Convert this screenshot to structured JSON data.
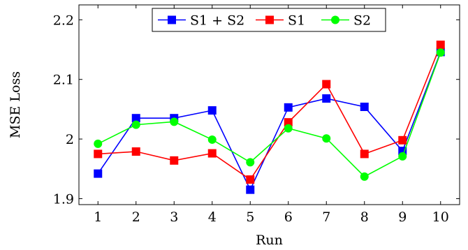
{
  "chart_data": {
    "type": "line",
    "xlabel": "Run",
    "ylabel": "MSE Loss",
    "categories": [
      "1",
      "2",
      "3",
      "4",
      "5",
      "6",
      "7",
      "8",
      "9",
      "10"
    ],
    "x": [
      1,
      2,
      3,
      4,
      5,
      6,
      7,
      8,
      9,
      10
    ],
    "xlim": [
      0.5,
      10.5
    ],
    "ylim": [
      1.89,
      2.225
    ],
    "y_ticks": [
      1.9,
      2,
      2.1,
      2.2
    ],
    "y_tick_labels": [
      "1.9",
      "2",
      "2.1",
      "2.2"
    ],
    "grid": false,
    "legend_position": "top-center",
    "series": [
      {
        "name": "S1 + S2",
        "color": "#0000ff",
        "marker": "square",
        "values": [
          1.942,
          2.035,
          2.035,
          2.048,
          1.915,
          2.053,
          2.068,
          2.054,
          1.98,
          2.146
        ]
      },
      {
        "name": "S1",
        "color": "#ff0000",
        "marker": "square",
        "values": [
          1.975,
          1.979,
          1.964,
          1.976,
          1.932,
          2.028,
          2.092,
          1.975,
          1.998,
          2.158
        ]
      },
      {
        "name": "S2",
        "color": "#00ff00",
        "marker": "circle",
        "values": [
          1.992,
          2.024,
          2.029,
          1.999,
          1.961,
          2.018,
          2.001,
          1.937,
          1.971,
          2.145
        ]
      }
    ]
  }
}
